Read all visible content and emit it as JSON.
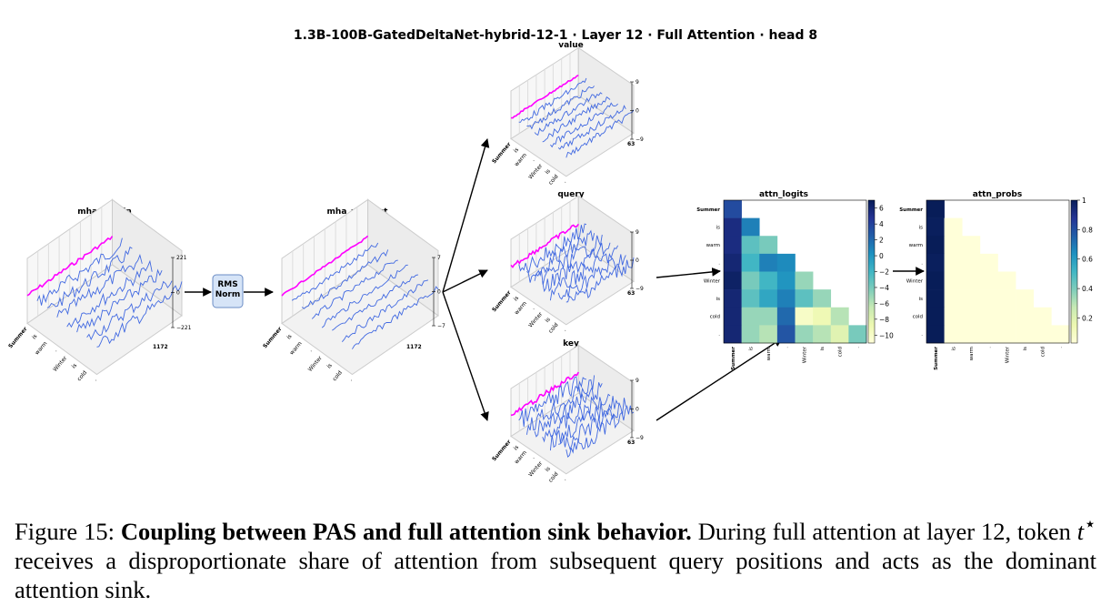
{
  "figure": {
    "title": "1.3B-100B-GatedDeltaNet-hybrid-12-1 · Layer 12 · Full Attention · head 8",
    "tokens": [
      "Summer",
      "is",
      "warm",
      ".",
      "Winter",
      "is",
      "cold",
      "."
    ],
    "norm_box": "RMS Norm",
    "panels3d": [
      {
        "title": "mha_rms_in",
        "zlim": [
          -221,
          221
        ],
        "zticks": [
          221,
          0,
          {
            "value": -221,
            "label": "−221"
          }
        ],
        "dim_tick": 1172
      },
      {
        "title": "mha_rms_out",
        "zlim": [
          -7,
          7
        ],
        "zticks": [
          7,
          0,
          {
            "value": -7,
            "label": "−7"
          }
        ],
        "dim_tick": 1172
      },
      {
        "title": "value",
        "zlim": [
          -9,
          9
        ],
        "zticks": [
          9,
          0,
          {
            "value": -9,
            "label": "−9"
          }
        ],
        "dim_tick": 63
      },
      {
        "title": "query",
        "zlim": [
          -9,
          9
        ],
        "zticks": [
          9,
          0,
          {
            "value": -9,
            "label": "−9"
          }
        ],
        "dim_tick": 63
      },
      {
        "title": "key",
        "zlim": [
          -9,
          9
        ],
        "zticks": [
          9,
          0,
          {
            "value": -9,
            "label": "−9"
          }
        ],
        "dim_tick": 63
      }
    ],
    "heatmaps": [
      {
        "title": "attn_logits",
        "clim": [
          -11,
          7
        ],
        "cticks": [
          6,
          4,
          2,
          0,
          {
            "value": -2,
            "label": "−2"
          },
          {
            "value": -4,
            "label": "−4"
          },
          {
            "value": -6,
            "label": "−6"
          },
          {
            "value": -8,
            "label": "−8"
          },
          {
            "value": -10,
            "label": "−10"
          }
        ],
        "values": [
          [
            3.5
          ],
          [
            5.5,
            1
          ],
          [
            5.5,
            -3,
            -4
          ],
          [
            6,
            -2,
            1,
            0.5
          ],
          [
            6.5,
            -4,
            -2,
            0,
            -5
          ],
          [
            6,
            -3,
            -1,
            1,
            -3,
            -5
          ],
          [
            6,
            -5,
            -5,
            2,
            -10,
            -9,
            -6
          ],
          [
            6,
            -5,
            -6,
            3,
            -5,
            -6,
            -8,
            -4
          ]
        ]
      },
      {
        "title": "attn_probs",
        "clim": [
          0.03,
          1.0
        ],
        "cticks": [
          1.0,
          0.8,
          0.6,
          0.4,
          0.2
        ],
        "values": [
          [
            1.0
          ],
          [
            0.99,
            0.01
          ],
          [
            1.0,
            0.0,
            0.0
          ],
          [
            0.99,
            0.0,
            0.01,
            0.0
          ],
          [
            1.0,
            0.0,
            0.0,
            0.0,
            0.0
          ],
          [
            1.0,
            0.0,
            0.0,
            0.0,
            0.0,
            0.0
          ],
          [
            1.0,
            0.0,
            0.0,
            0.0,
            0.0,
            0.0,
            0.0
          ],
          [
            1.0,
            0.0,
            0.0,
            0.0,
            0.0,
            0.0,
            0.0,
            0.0
          ]
        ]
      }
    ]
  },
  "caption": {
    "label": "Figure 15:",
    "bold": "Coupling between PAS and full attention sink behavior.",
    "text_before": "During full attention at layer 12, token",
    "math": "t",
    "sup": "⋆",
    "text_after": "receives a disproportionate share of attention from subsequent query positions and acts as the dominant attention sink."
  }
}
